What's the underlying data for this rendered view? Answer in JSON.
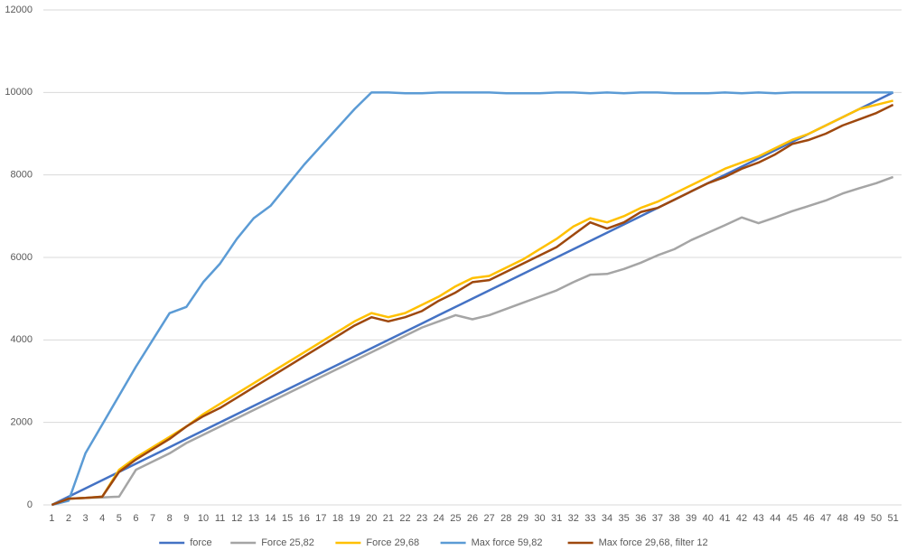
{
  "chart_data": {
    "type": "line",
    "categories": [
      "1",
      "2",
      "3",
      "4",
      "5",
      "6",
      "7",
      "8",
      "9",
      "10",
      "11",
      "12",
      "13",
      "14",
      "15",
      "16",
      "17",
      "18",
      "19",
      "20",
      "21",
      "22",
      "23",
      "24",
      "25",
      "26",
      "27",
      "28",
      "29",
      "30",
      "31",
      "32",
      "33",
      "34",
      "35",
      "36",
      "37",
      "38",
      "39",
      "40",
      "41",
      "42",
      "43",
      "44",
      "45",
      "46",
      "47",
      "48",
      "49",
      "50",
      "51"
    ],
    "series": [
      {
        "name": "force",
        "color": "#4472c4",
        "values": [
          0,
          200,
          400,
          600,
          800,
          1000,
          1200,
          1400,
          1600,
          1800,
          2000,
          2200,
          2400,
          2600,
          2800,
          3000,
          3200,
          3400,
          3600,
          3800,
          4000,
          4200,
          4400,
          4600,
          4800,
          5000,
          5200,
          5400,
          5600,
          5800,
          6000,
          6200,
          6400,
          6600,
          6800,
          7000,
          7200,
          7400,
          7600,
          7800,
          8000,
          8200,
          8400,
          8600,
          8800,
          9000,
          9200,
          9400,
          9600,
          9800,
          10000
        ]
      },
      {
        "name": "Force 25,82",
        "color": "#a5a5a5",
        "values": [
          0,
          150,
          170,
          180,
          200,
          850,
          1050,
          1250,
          1500,
          1700,
          1900,
          2100,
          2300,
          2500,
          2700,
          2900,
          3100,
          3300,
          3500,
          3700,
          3900,
          4100,
          4300,
          4450,
          4600,
          4500,
          4600,
          4750,
          4900,
          5050,
          5200,
          5400,
          5580,
          5600,
          5720,
          5870,
          6050,
          6200,
          6420,
          6600,
          6780,
          6970,
          6830,
          6970,
          7120,
          7250,
          7380,
          7550,
          7680,
          7800,
          7950
        ]
      },
      {
        "name": "Force 29,68",
        "color": "#ffc000",
        "values": [
          0,
          150,
          170,
          200,
          850,
          1150,
          1400,
          1650,
          1900,
          2200,
          2450,
          2700,
          2950,
          3200,
          3450,
          3700,
          3950,
          4200,
          4450,
          4650,
          4550,
          4650,
          4850,
          5050,
          5300,
          5500,
          5550,
          5750,
          5950,
          6200,
          6450,
          6750,
          6950,
          6850,
          7000,
          7200,
          7350,
          7550,
          7750,
          7950,
          8150,
          8300,
          8450,
          8650,
          8850,
          9000,
          9200,
          9400,
          9600,
          9700,
          9800
        ]
      },
      {
        "name": "Max force 59,82",
        "color": "#5b9bd5",
        "values": [
          0,
          100,
          1250,
          1950,
          2650,
          3350,
          4000,
          4650,
          4800,
          5400,
          5850,
          6450,
          6950,
          7250,
          7750,
          8250,
          8700,
          9150,
          9600,
          10000,
          10000,
          9980,
          9980,
          10000,
          10000,
          10000,
          10000,
          9980,
          9980,
          9980,
          10000,
          10000,
          9980,
          10000,
          9980,
          10000,
          10000,
          9980,
          9980,
          9980,
          10000,
          9980,
          10000,
          9980,
          10000,
          10000,
          10000,
          10000,
          10000,
          10000,
          10000
        ]
      },
      {
        "name": "Max force 29,68, filter 12",
        "color": "#9e480e",
        "values": [
          0,
          150,
          170,
          200,
          800,
          1100,
          1350,
          1600,
          1900,
          2150,
          2350,
          2600,
          2850,
          3100,
          3350,
          3600,
          3850,
          4100,
          4350,
          4550,
          4450,
          4550,
          4700,
          4950,
          5150,
          5400,
          5450,
          5650,
          5850,
          6050,
          6250,
          6550,
          6850,
          6700,
          6850,
          7100,
          7200,
          7400,
          7600,
          7800,
          7950,
          8150,
          8300,
          8500,
          8750,
          8850,
          9000,
          9200,
          9350,
          9500,
          9700
        ]
      }
    ],
    "ylim": [
      0,
      12000
    ],
    "yticks": [
      0,
      2000,
      4000,
      6000,
      8000,
      10000,
      12000
    ],
    "grid": true,
    "legend": "bottom"
  }
}
